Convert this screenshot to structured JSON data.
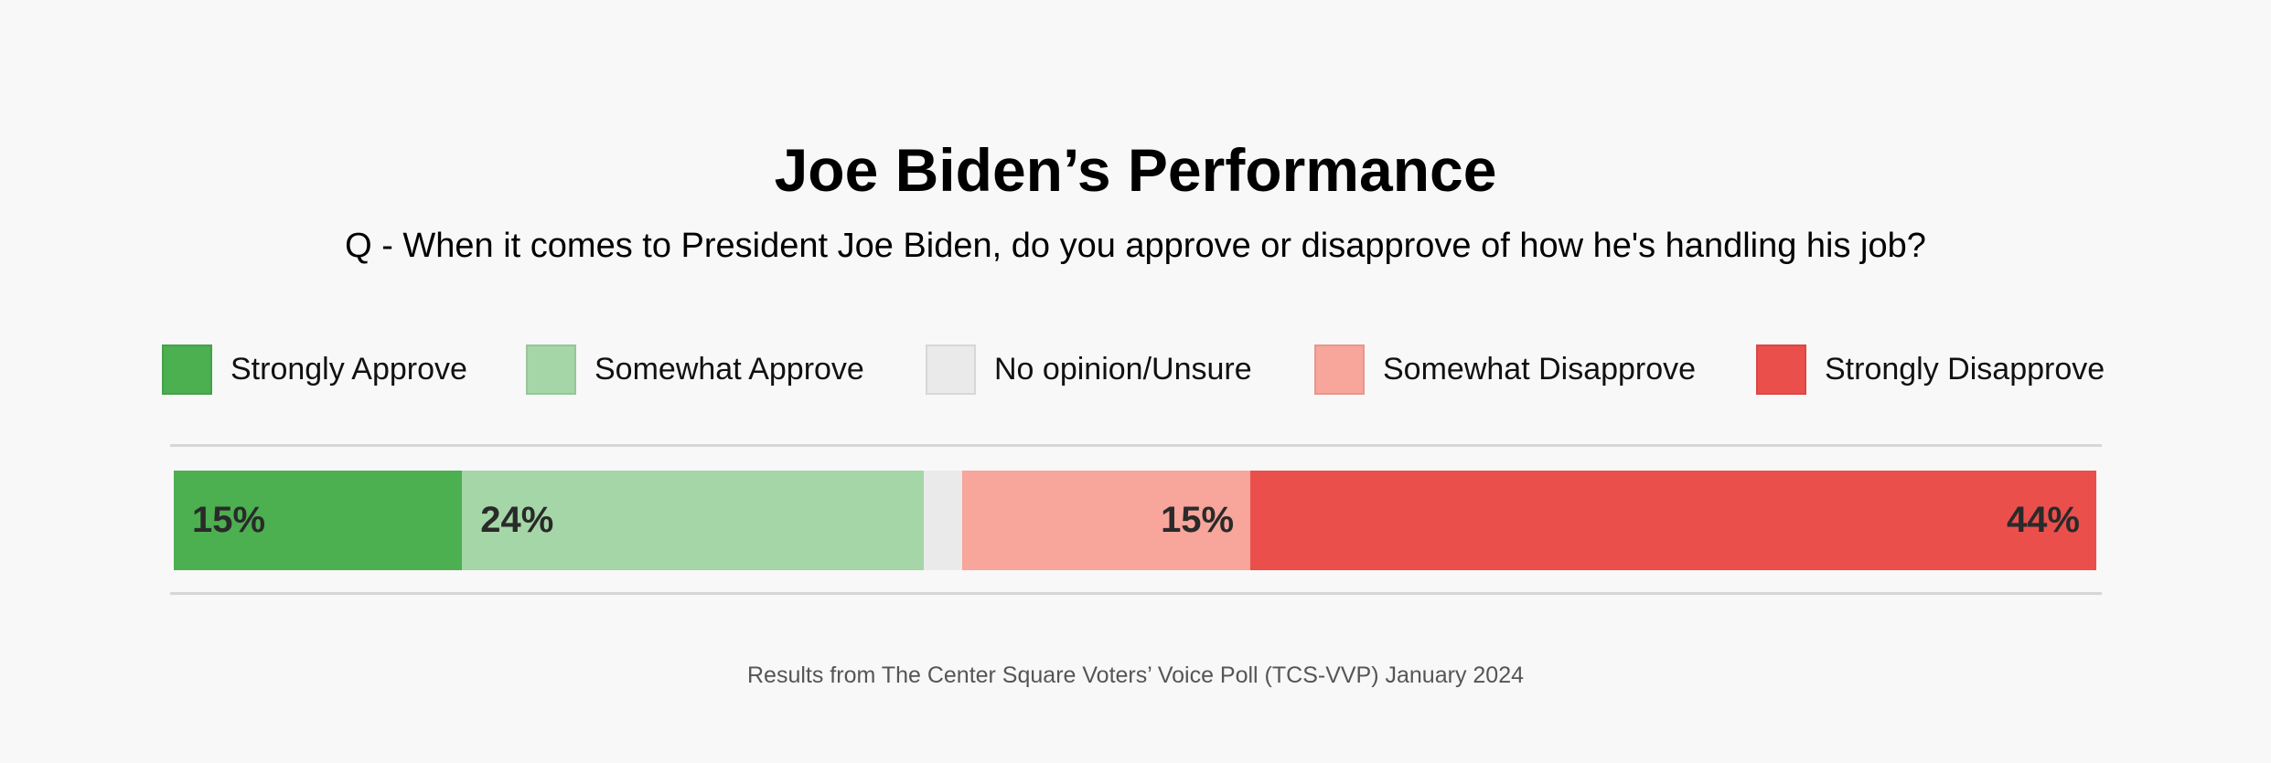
{
  "chart_data": {
    "type": "bar",
    "orientation": "horizontal-stacked",
    "title": "Joe Biden’s Performance",
    "subtitle": "Q - When it comes to President Joe Biden, do you approve or disapprove of how he's handling his job?",
    "legend_position": "top",
    "series": [
      {
        "name": "Strongly Approve",
        "value": 15,
        "label": "15%",
        "color": "#4caf50",
        "label_align": "left"
      },
      {
        "name": "Somewhat Approve",
        "value": 24,
        "label": "24%",
        "color": "#a5d6a7",
        "label_align": "left"
      },
      {
        "name": "No opinion/Unsure",
        "value": 2,
        "label": "",
        "color": "#eaeaea",
        "label_align": "none"
      },
      {
        "name": "Somewhat Disapprove",
        "value": 15,
        "label": "15%",
        "color": "#f8a59b",
        "label_align": "right"
      },
      {
        "name": "Strongly Disapprove",
        "value": 44,
        "label": "44%",
        "color": "#eb4f4c",
        "label_align": "right"
      }
    ],
    "footer": "Results from The Center Square Voters’ Voice Poll (TCS-VVP) January 2024"
  }
}
